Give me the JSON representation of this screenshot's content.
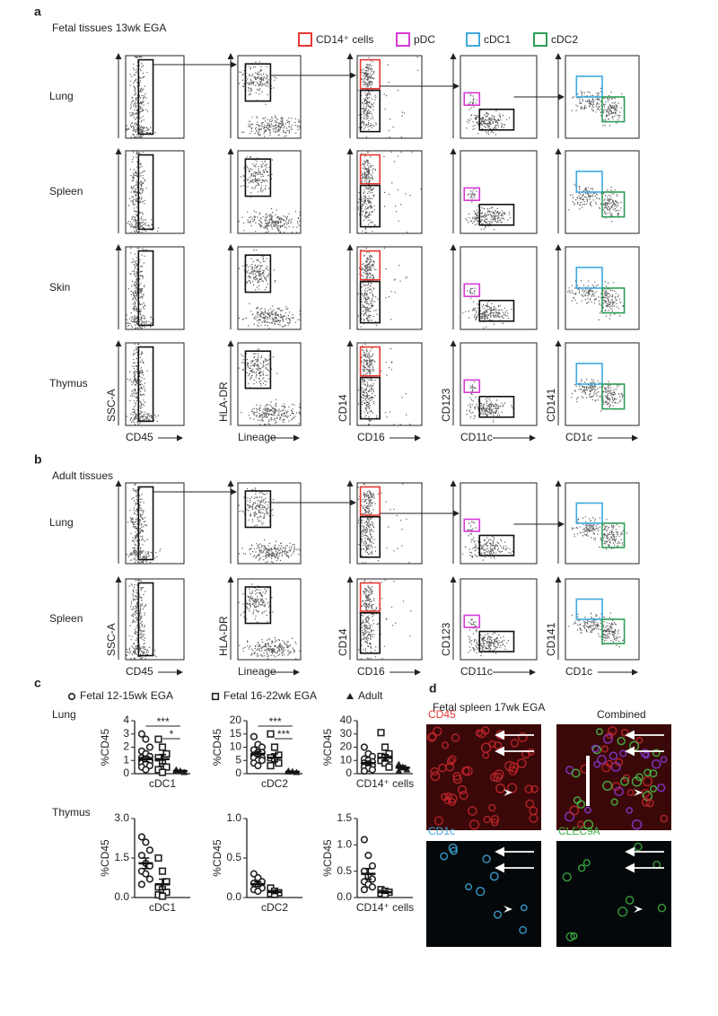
{
  "panel_a": {
    "label": "a",
    "title": "Fetal tissues 13wk EGA",
    "gates": [
      {
        "label": "CD14⁺ cells",
        "color": "#e53935"
      },
      {
        "label": "pDC",
        "color": "#d63ad6"
      },
      {
        "label": "cDC1",
        "color": "#3fa9dd"
      },
      {
        "label": "cDC2",
        "color": "#2e9e57"
      }
    ],
    "rows": [
      "Lung",
      "Spleen",
      "Skin",
      "Thymus"
    ],
    "x_axes": [
      "CD45",
      "Lineage",
      "CD16",
      "CD11c",
      "CD1c"
    ],
    "y_axes": [
      "SSC-A",
      "HLA-DR",
      "CD14",
      "CD123",
      "CD141"
    ]
  },
  "panel_b": {
    "label": "b",
    "title": "Adult tissues",
    "rows": [
      "Lung",
      "Spleen"
    ],
    "x_axes": [
      "CD45",
      "Lineage",
      "CD16",
      "CD11c",
      "CD1c"
    ],
    "y_axes": [
      "SSC-A",
      "HLA-DR",
      "CD14",
      "CD123",
      "CD141"
    ]
  },
  "panel_c": {
    "label": "c",
    "legend": [
      {
        "name": "Fetal 12-15wk EGA",
        "marker": "circle"
      },
      {
        "name": "Fetal 16-22wk EGA",
        "marker": "square"
      },
      {
        "name": "Adult",
        "marker": "triangle"
      }
    ],
    "rows": [
      {
        "name": "Lung",
        "charts": [
          {
            "type": "dot",
            "ylabel": "%CD45",
            "xlabel": "cDC1",
            "ylim": [
              0,
              4
            ],
            "yticks": [
              0,
              1,
              2,
              3,
              4
            ],
            "significance": [
              "***",
              "*"
            ],
            "series": [
              {
                "values": [
                  3.0,
                  2.6,
                  2.0,
                  1.7,
                  1.5,
                  1.3,
                  1.2,
                  1.1,
                  1.0,
                  1.0,
                  0.9,
                  0.9,
                  0.8,
                  0.7,
                  0.6,
                  0.5,
                  0.3
                ],
                "mean": 1.1,
                "err": 0.2
              },
              {
                "values": [
                  2.6,
                  2.0,
                  1.5,
                  1.2,
                  0.8,
                  0.5,
                  0.3,
                  0.1
                ],
                "mean": 1.1,
                "err": 0.35
              },
              {
                "values": [
                  0.3,
                  0.2,
                  0.1,
                  0.2
                ],
                "mean": 0.2,
                "err": 0.05
              }
            ]
          },
          {
            "type": "dot",
            "ylabel": "%CD45",
            "xlabel": "cDC2",
            "ylim": [
              0,
              20
            ],
            "yticks": [
              0,
              5,
              10,
              15,
              20
            ],
            "significance": [
              "***",
              "***"
            ],
            "series": [
              {
                "values": [
                  14,
                  11,
                  10,
                  9,
                  8,
                  8,
                  7,
                  7,
                  6,
                  6,
                  5,
                  5,
                  4,
                  3
                ],
                "mean": 7.5,
                "err": 0.9
              },
              {
                "values": [
                  15,
                  10,
                  7,
                  6,
                  5,
                  4,
                  3
                ],
                "mean": 6,
                "err": 1.5
              },
              {
                "values": [
                  1,
                  0.8,
                  0.5,
                  0.7
                ],
                "mean": 0.7,
                "err": 0.1
              }
            ]
          },
          {
            "type": "dot",
            "ylabel": "%CD45",
            "xlabel": "CD14⁺ cells",
            "ylim": [
              0,
              40
            ],
            "yticks": [
              0,
              10,
              20,
              30,
              40
            ],
            "significance": [],
            "series": [
              {
                "values": [
                  20,
                  15,
                  13,
                  11,
                  10,
                  9,
                  8,
                  7,
                  6,
                  5,
                  4,
                  3,
                  2
                ],
                "mean": 8,
                "err": 1.5
              },
              {
                "values": [
                  31,
                  20,
                  15,
                  13,
                  12,
                  11,
                  10,
                  8,
                  5
                ],
                "mean": 12,
                "err": 2.5
              },
              {
                "values": [
                  7,
                  5,
                  3,
                  2
                ],
                "mean": 4.5,
                "err": 1.5
              }
            ]
          }
        ]
      },
      {
        "name": "Thymus",
        "charts": [
          {
            "type": "dot",
            "ylabel": "%CD45",
            "xlabel": "cDC1",
            "ylim": [
              0,
              3
            ],
            "yticks": [
              {
                "value": 0,
                "label": "0.0"
              },
              1.5,
              {
                "value": 3,
                "label": "3.0"
              }
            ],
            "significance": [],
            "series": [
              {
                "values": [
                  2.3,
                  2.1,
                  1.8,
                  1.6,
                  1.3,
                  1.2,
                  1.0,
                  0.9,
                  0.7,
                  0.5
                ],
                "mean": 1.3,
                "err": 0.2
              },
              {
                "values": [
                  1.5,
                  1.0,
                  0.6,
                  0.4,
                  0.3,
                  0.2,
                  0.1,
                  0.05
                ],
                "mean": 0.5,
                "err": 0.2
              }
            ]
          },
          {
            "type": "dot",
            "ylabel": "%CD45",
            "xlabel": "cDC2",
            "ylim": [
              0,
              1
            ],
            "yticks": [
              {
                "value": 0,
                "label": "0.0"
              },
              0.5,
              {
                "value": 1,
                "label": "1.0"
              }
            ],
            "significance": [],
            "series": [
              {
                "values": [
                  0.3,
                  0.25,
                  0.2,
                  0.18,
                  0.15,
                  0.12,
                  0.1,
                  0.08
                ],
                "mean": 0.17,
                "err": 0.03
              },
              {
                "values": [
                  0.12,
                  0.08,
                  0.06,
                  0.05,
                  0.04
                ],
                "mean": 0.07,
                "err": 0.02
              }
            ]
          },
          {
            "type": "dot",
            "ylabel": "%CD45",
            "xlabel": "CD14⁺ cells",
            "ylim": [
              0,
              1.5
            ],
            "yticks": [
              {
                "value": 0,
                "label": "0.0"
              },
              0.5,
              {
                "value": 1,
                "label": "1.0"
              },
              1.5
            ],
            "significance": [],
            "series": [
              {
                "values": [
                  1.1,
                  0.8,
                  0.6,
                  0.5,
                  0.4,
                  0.35,
                  0.3,
                  0.25,
                  0.2,
                  0.15
                ],
                "mean": 0.45,
                "err": 0.1
              },
              {
                "values": [
                  0.15,
                  0.12,
                  0.1,
                  0.08,
                  0.06
                ],
                "mean": 0.1,
                "err": 0.02
              }
            ]
          }
        ]
      }
    ]
  },
  "panel_d": {
    "label": "d",
    "title": "Fetal spleen 17wk EGA",
    "images": [
      {
        "label": "CD45",
        "color": "#e53935"
      },
      {
        "label": "Combined",
        "color": "#222222"
      },
      {
        "label": "CD1c",
        "color": "#3fa9dd"
      },
      {
        "label": "CLEC9A",
        "color": "#3cb043"
      }
    ]
  }
}
